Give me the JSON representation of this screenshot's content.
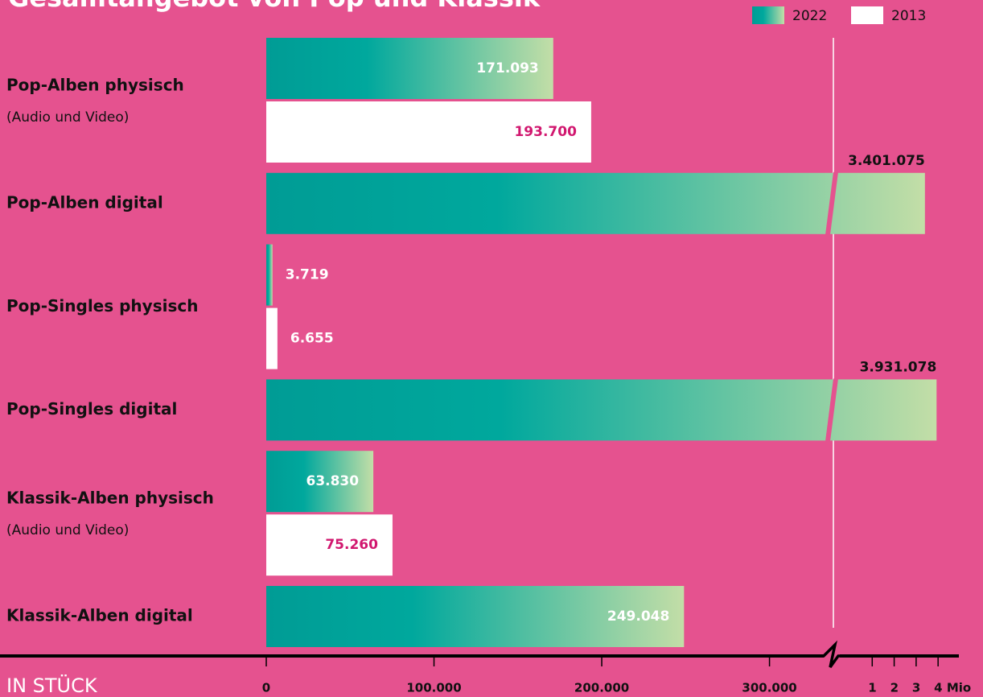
{
  "chart_data": {
    "type": "bar",
    "orientation": "horizontal",
    "title": "Gesamtangebot von Pop und Klassik",
    "xlabel": "IN STÜCK",
    "categories": [
      "Pop-Alben physisch",
      "Pop-Alben digital",
      "Pop-Singles physisch",
      "Pop-Singles digital",
      "Klassik-Alben physisch",
      "Klassik-Alben digital"
    ],
    "category_notes": [
      "(Audio und Video)",
      null,
      null,
      null,
      "(Audio und Video)",
      null
    ],
    "series": [
      {
        "name": "2022",
        "color": "#009c95",
        "color_end": "#c3dea7",
        "values": [
          171093,
          3401075,
          3719,
          3931078,
          63830,
          249048
        ],
        "value_labels": [
          "171.093",
          "3.401.075",
          "3.719",
          "3.931.078",
          "63.830",
          "249.048"
        ]
      },
      {
        "name": "2013",
        "color": "#ffffff",
        "values": [
          193700,
          null,
          6655,
          null,
          75260,
          null
        ],
        "value_labels": [
          "193.700",
          null,
          "6.655",
          null,
          "75.260",
          null
        ]
      }
    ],
    "xlim": [
      0,
      340000
    ],
    "xticks": [
      0,
      {
        "value": 100000,
        "label": "100.000"
      },
      {
        "value": 200000,
        "label": "200.000"
      },
      {
        "value": 300000,
        "label": "300.000"
      }
    ],
    "x2lim": [
      0,
      4800000
    ],
    "x2ticks": [
      {
        "value": 1000000,
        "label": "1"
      },
      {
        "value": 2000000,
        "label": "2"
      },
      {
        "value": 3000000,
        "label": "3"
      },
      {
        "value": 4000000,
        "label": "4 Mio"
      }
    ],
    "axis_break": true,
    "legend": "top-right"
  }
}
